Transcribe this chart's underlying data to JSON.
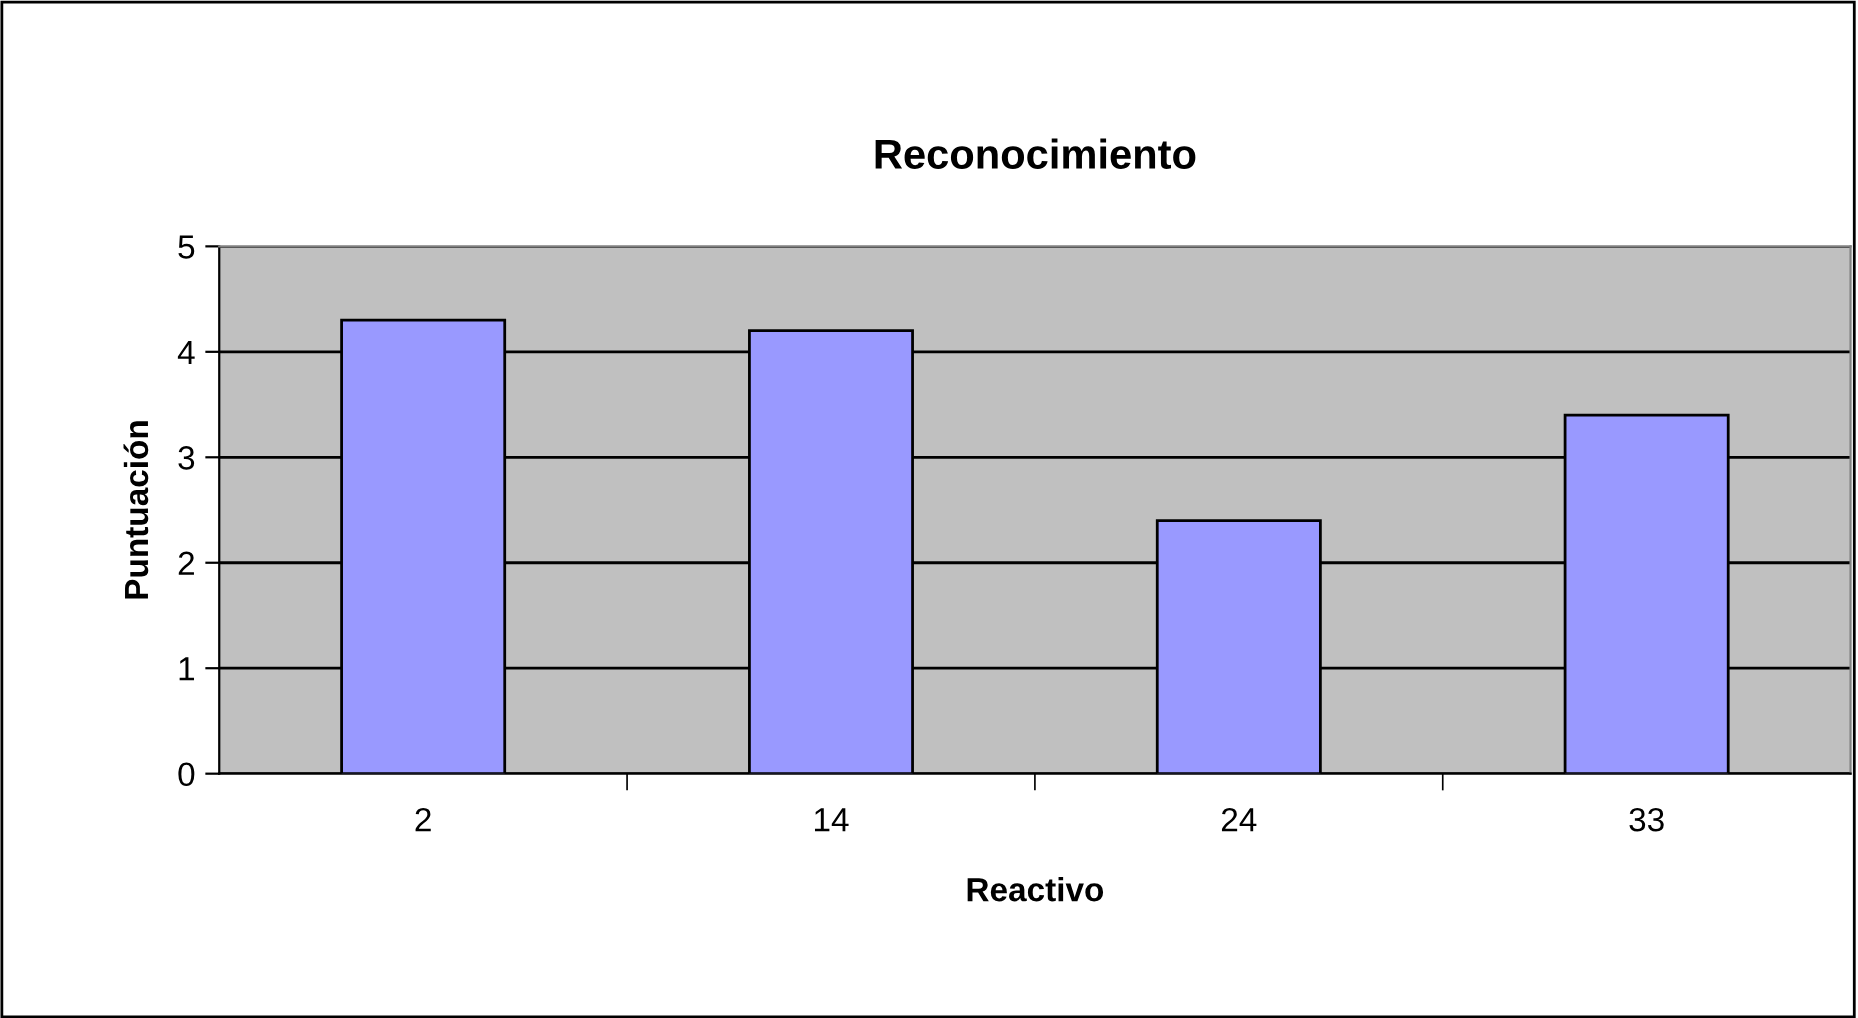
{
  "chart_data": {
    "type": "bar",
    "title": "Reconocimiento",
    "xlabel": "Reactivo",
    "ylabel": "Puntuación",
    "categories": [
      "2",
      "14",
      "24",
      "33"
    ],
    "values": [
      4.3,
      4.2,
      2.4,
      3.4
    ],
    "color": "#9999ff",
    "ylim": [
      0,
      5
    ],
    "yticks": [
      0,
      1,
      2,
      3,
      4,
      5
    ],
    "grid": "y"
  }
}
